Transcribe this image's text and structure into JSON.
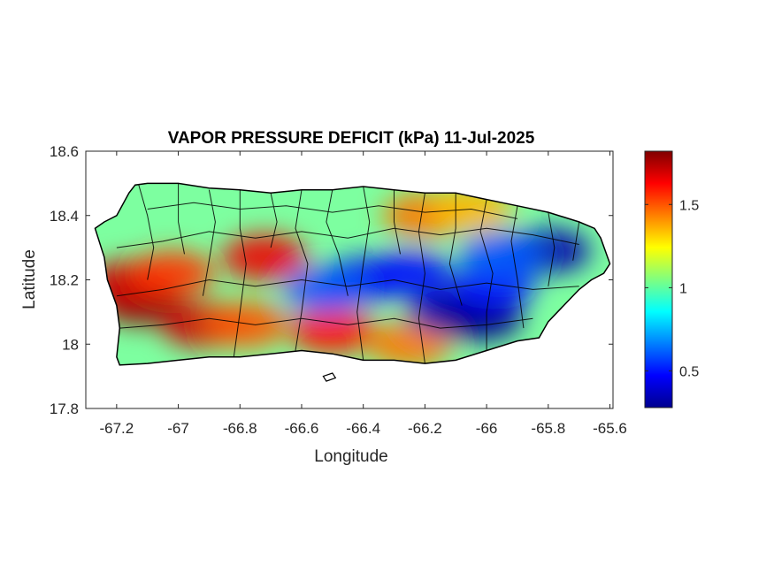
{
  "chart_data": {
    "type": "heatmap",
    "title": "VAPOR PRESSURE DEFICIT (kPa) 11-Jul-2025",
    "xlabel": "Longitude",
    "ylabel": "Latitude",
    "xlim": [
      -67.3,
      -65.59
    ],
    "ylim": [
      17.8,
      18.6
    ],
    "x_ticks": [
      -67.2,
      -67.0,
      -66.8,
      -66.6,
      -66.4,
      -66.2,
      -66.0,
      -65.8,
      -65.6
    ],
    "x_tick_labels": [
      "-67.2",
      "-67",
      "-66.8",
      "-66.6",
      "-66.4",
      "-66.2",
      "-66",
      "-65.8",
      "-65.6"
    ],
    "y_ticks": [
      17.8,
      18.0,
      18.2,
      18.4,
      18.6
    ],
    "y_tick_labels": [
      "17.8",
      "18",
      "18.2",
      "18.4",
      "18.6"
    ],
    "grid": false,
    "colormap": "jet",
    "colorbar": {
      "range": [
        0.28,
        1.82
      ],
      "ticks": [
        0.5,
        1.0,
        1.5
      ],
      "tick_labels": [
        "0.5",
        "1",
        "1.5"
      ],
      "placement": "right"
    },
    "hotspots": [
      {
        "lon": -67.12,
        "lat": 18.13,
        "value": 1.8
      },
      {
        "lon": -67.16,
        "lat": 18.19,
        "value": 1.7
      },
      {
        "lon": -67.02,
        "lat": 18.22,
        "value": 1.55
      },
      {
        "lon": -66.92,
        "lat": 18.06,
        "value": 1.7
      },
      {
        "lon": -66.78,
        "lat": 18.06,
        "value": 1.5
      },
      {
        "lon": -66.72,
        "lat": 18.27,
        "value": 1.65
      },
      {
        "lon": -66.5,
        "lat": 18.04,
        "value": 1.6
      },
      {
        "lon": -66.25,
        "lat": 18.0,
        "value": 1.45
      },
      {
        "lon": -66.2,
        "lat": 18.4,
        "value": 1.45
      },
      {
        "lon": -66.05,
        "lat": 18.42,
        "value": 1.35
      },
      {
        "lon": -66.4,
        "lat": 18.2,
        "value": 0.45
      },
      {
        "lon": -66.52,
        "lat": 18.17,
        "value": 0.6
      },
      {
        "lon": -66.25,
        "lat": 18.22,
        "value": 0.5
      },
      {
        "lon": -66.12,
        "lat": 18.1,
        "value": 0.35
      },
      {
        "lon": -66.02,
        "lat": 18.08,
        "value": 0.3
      },
      {
        "lon": -65.98,
        "lat": 18.18,
        "value": 0.5
      },
      {
        "lon": -65.8,
        "lat": 18.29,
        "value": 0.35
      },
      {
        "lon": -65.95,
        "lat": 18.28,
        "value": 0.6
      }
    ]
  }
}
